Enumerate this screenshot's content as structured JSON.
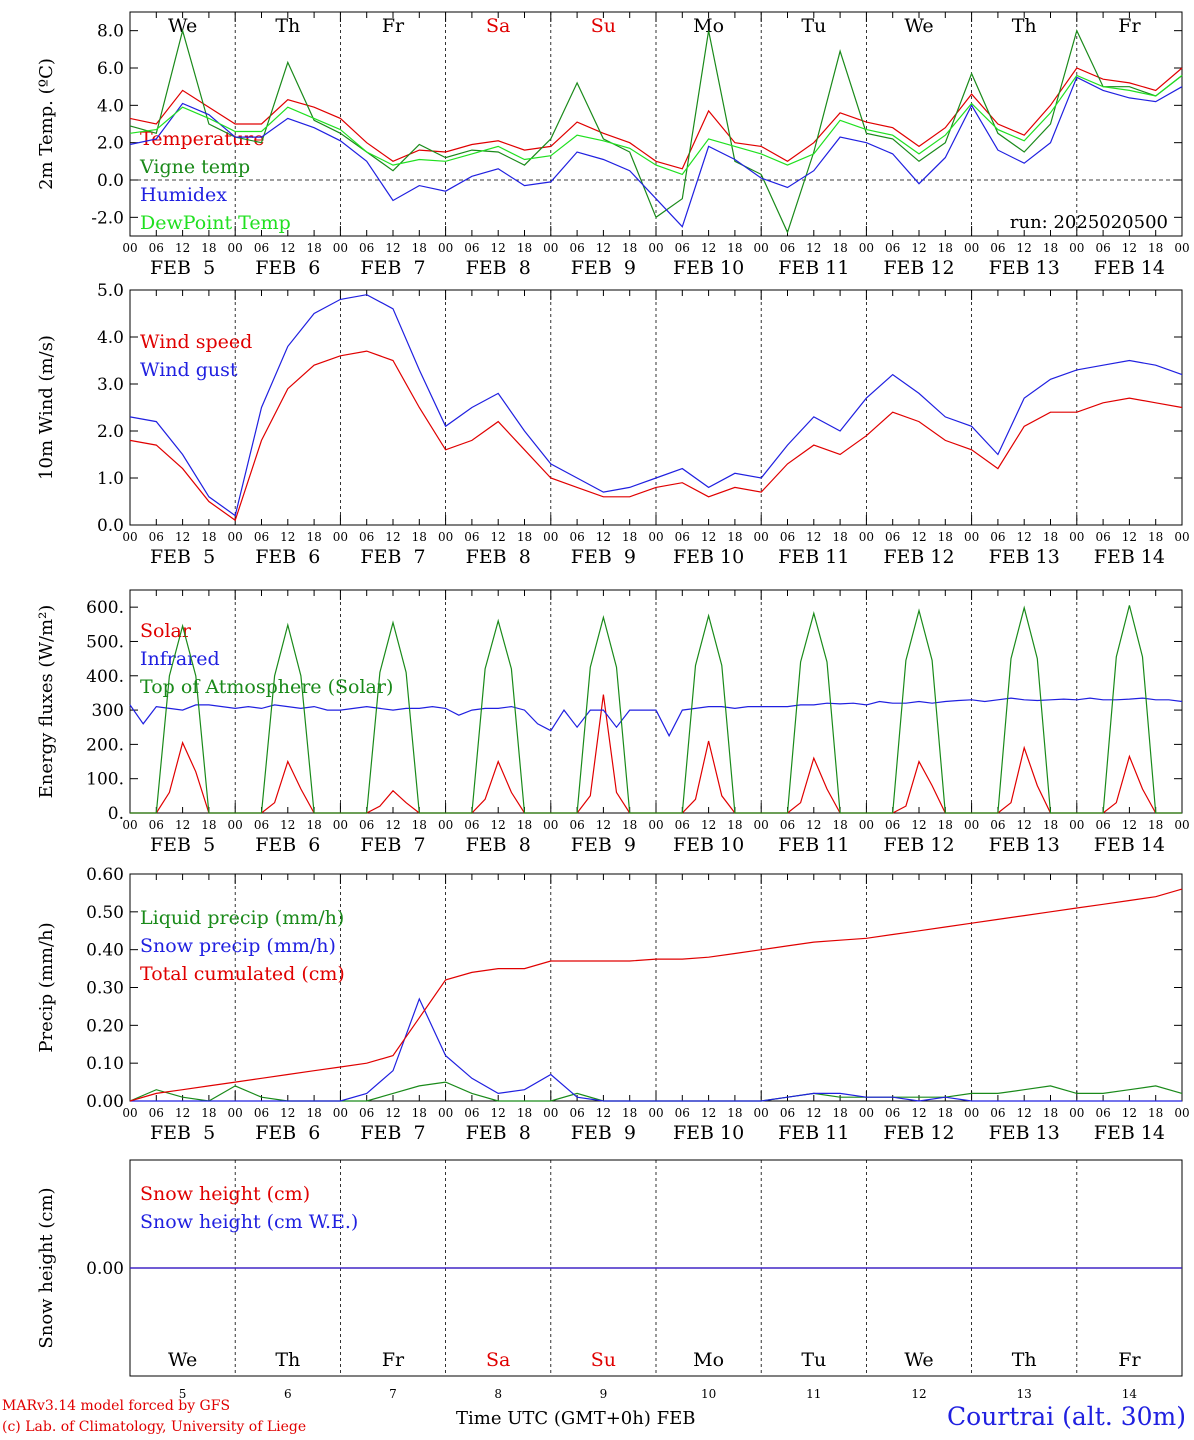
{
  "footer": {
    "model": "MARv3.14 model forced by GFS",
    "lab": "(c) Lab. of Climatology, University of Liege",
    "xaxis_label": "Time UTC (GMT+0h)",
    "month_label": "FEB",
    "station": "Courtrai (alt. 30m)"
  },
  "colors": {
    "red": "#e00000",
    "blue": "#2020e0",
    "green": "#1a8a1a",
    "lightgreen": "#20e020",
    "weekend": "#e00000"
  },
  "chart_data": [
    {
      "type": "line",
      "id": "temp",
      "ylabel": "2m Temp. (ºC)",
      "ylim": [
        -3,
        9
      ],
      "yticks": [
        "8.0",
        "6.0",
        "4.0",
        "2.0",
        "0.0",
        "-2.0"
      ],
      "zero_line": true,
      "day_labels": [
        "We",
        "Th",
        "Fr",
        "Sa",
        "Su",
        "Mo",
        "Tu",
        "We",
        "Th",
        "Fr"
      ],
      "weekend_days": [
        "Sa",
        "Su"
      ],
      "date_labels": [
        "FEB  5",
        "FEB  6",
        "FEB  7",
        "FEB  8",
        "FEB  9",
        "FEB 10",
        "FEB 11",
        "FEB 12",
        "FEB 13",
        "FEB 14"
      ],
      "hour_ticks": [
        "00",
        "06",
        "12",
        "18"
      ],
      "run_label": "run: 2025020500",
      "x_hours": [
        0,
        6,
        12,
        18,
        24,
        30,
        36,
        42,
        48,
        54,
        60,
        66,
        72,
        78,
        84,
        90,
        96,
        102,
        108,
        114,
        120,
        126,
        132,
        138,
        144,
        150,
        156,
        162,
        168,
        174,
        180,
        186,
        192,
        198,
        204,
        210,
        216,
        222,
        228,
        234,
        240
      ],
      "series": [
        {
          "name": "Temperature",
          "color": "#e00000",
          "values": [
            3.3,
            3.0,
            4.8,
            3.9,
            3.0,
            3.0,
            4.3,
            3.9,
            3.3,
            2.0,
            1.0,
            1.6,
            1.5,
            1.9,
            2.1,
            1.6,
            1.8,
            3.1,
            2.5,
            2.0,
            1.0,
            0.6,
            3.7,
            2.0,
            1.8,
            1.0,
            2.0,
            3.6,
            3.1,
            2.8,
            1.8,
            2.8,
            4.6,
            3.0,
            2.4,
            4.0,
            6.0,
            5.4,
            5.2,
            4.8,
            6.0
          ]
        },
        {
          "name": "Vigne temp",
          "color": "#1a8a1a",
          "values": [
            2.9,
            2.5,
            8.0,
            3.0,
            2.3,
            2.0,
            6.3,
            3.2,
            2.5,
            1.5,
            0.5,
            1.9,
            1.2,
            1.6,
            1.5,
            0.8,
            2.2,
            5.2,
            2.2,
            1.5,
            -2.0,
            -1.0,
            8.0,
            1.0,
            0.3,
            -2.8,
            1.5,
            6.9,
            2.5,
            2.2,
            1.0,
            2.0,
            5.7,
            2.5,
            1.5,
            3.0,
            8.0,
            5.0,
            5.0,
            4.5,
            5.6
          ]
        },
        {
          "name": "Humidex",
          "color": "#2020e0",
          "values": [
            1.9,
            2.2,
            4.1,
            3.5,
            2.3,
            2.3,
            3.3,
            2.8,
            2.1,
            1.0,
            -1.1,
            -0.3,
            -0.6,
            0.2,
            0.6,
            -0.3,
            -0.1,
            1.5,
            1.1,
            0.5,
            -1.0,
            -2.5,
            1.8,
            1.1,
            0.1,
            -0.4,
            0.5,
            2.3,
            2.0,
            1.4,
            -0.2,
            1.2,
            4.0,
            1.6,
            0.9,
            2.0,
            5.5,
            4.8,
            4.4,
            4.2,
            5.0
          ]
        },
        {
          "name": "DewPoint Temp",
          "color": "#20e020",
          "values": [
            2.5,
            2.7,
            3.9,
            3.3,
            2.6,
            2.6,
            3.9,
            3.3,
            2.7,
            1.5,
            0.8,
            1.1,
            1.0,
            1.4,
            1.8,
            1.1,
            1.3,
            2.4,
            2.1,
            1.7,
            0.8,
            0.3,
            2.2,
            1.8,
            1.4,
            0.8,
            1.4,
            3.2,
            2.7,
            2.4,
            1.4,
            2.4,
            4.1,
            2.7,
            2.1,
            3.6,
            5.6,
            5.0,
            4.8,
            4.5,
            5.6
          ]
        }
      ]
    },
    {
      "type": "line",
      "id": "wind",
      "ylabel": "10m Wind (m/s)",
      "ylim": [
        0,
        5
      ],
      "yticks": [
        "5.0",
        "4.0",
        "3.0",
        "2.0",
        "1.0",
        "0.0"
      ],
      "date_labels": [
        "FEB  5",
        "FEB  6",
        "FEB  7",
        "FEB  8",
        "FEB  9",
        "FEB 10",
        "FEB 11",
        "FEB 12",
        "FEB 13",
        "FEB 14"
      ],
      "hour_ticks": [
        "00",
        "06",
        "12",
        "18"
      ],
      "x_hours": [
        0,
        6,
        12,
        18,
        24,
        30,
        36,
        42,
        48,
        54,
        60,
        66,
        72,
        78,
        84,
        90,
        96,
        102,
        108,
        114,
        120,
        126,
        132,
        138,
        144,
        150,
        156,
        162,
        168,
        174,
        180,
        186,
        192,
        198,
        204,
        210,
        216,
        222,
        228,
        234,
        240
      ],
      "series": [
        {
          "name": "Wind speed",
          "color": "#e00000",
          "values": [
            1.8,
            1.7,
            1.2,
            0.5,
            0.1,
            1.8,
            2.9,
            3.4,
            3.6,
            3.7,
            3.5,
            2.5,
            1.6,
            1.8,
            2.2,
            1.6,
            1.0,
            0.8,
            0.6,
            0.6,
            0.8,
            0.9,
            0.6,
            0.8,
            0.7,
            1.3,
            1.7,
            1.5,
            1.9,
            2.4,
            2.2,
            1.8,
            1.6,
            1.2,
            2.1,
            2.4,
            2.4,
            2.6,
            2.7,
            2.6,
            2.5
          ]
        },
        {
          "name": "Wind gust",
          "color": "#2020e0",
          "values": [
            2.3,
            2.2,
            1.5,
            0.6,
            0.2,
            2.5,
            3.8,
            4.5,
            4.8,
            4.9,
            4.6,
            3.3,
            2.1,
            2.5,
            2.8,
            2.0,
            1.3,
            1.0,
            0.7,
            0.8,
            1.0,
            1.2,
            0.8,
            1.1,
            1.0,
            1.7,
            2.3,
            2.0,
            2.7,
            3.2,
            2.8,
            2.3,
            2.1,
            1.5,
            2.7,
            3.1,
            3.3,
            3.4,
            3.5,
            3.4,
            3.2
          ]
        }
      ]
    },
    {
      "type": "line",
      "id": "energy",
      "ylabel": "Energy fluxes (W/m²)",
      "ylim": [
        0,
        650
      ],
      "yticks": [
        "600.",
        "500.",
        "400.",
        "300",
        "200.",
        "100.",
        "0."
      ],
      "date_labels": [
        "FEB  5",
        "FEB  6",
        "FEB  7",
        "FEB  8",
        "FEB  9",
        "FEB 10",
        "FEB 11",
        "FEB 12",
        "FEB 13",
        "FEB 14"
      ],
      "hour_ticks": [
        "00",
        "06",
        "12",
        "18"
      ],
      "x_hours": [
        0,
        3,
        6,
        9,
        12,
        15,
        18,
        21,
        24,
        27,
        30,
        33,
        36,
        39,
        42,
        45,
        48,
        51,
        54,
        57,
        60,
        63,
        66,
        69,
        72,
        75,
        78,
        81,
        84,
        87,
        90,
        93,
        96,
        99,
        102,
        105,
        108,
        111,
        114,
        117,
        120,
        123,
        126,
        129,
        132,
        135,
        138,
        141,
        144,
        147,
        150,
        153,
        156,
        159,
        162,
        165,
        168,
        171,
        174,
        177,
        180,
        183,
        186,
        189,
        192,
        195,
        198,
        201,
        204,
        207,
        210,
        213,
        216,
        219,
        222,
        225,
        228,
        231,
        234,
        237,
        240
      ],
      "series": [
        {
          "name": "Solar",
          "color": "#e00000",
          "values": [
            0,
            0,
            0,
            60,
            205,
            120,
            0,
            0,
            0,
            0,
            0,
            30,
            150,
            70,
            0,
            0,
            0,
            0,
            0,
            20,
            65,
            30,
            0,
            0,
            0,
            0,
            0,
            40,
            150,
            60,
            0,
            0,
            0,
            0,
            0,
            50,
            345,
            60,
            0,
            0,
            0,
            0,
            0,
            40,
            210,
            50,
            0,
            0,
            0,
            0,
            0,
            30,
            160,
            70,
            0,
            0,
            0,
            0,
            0,
            20,
            150,
            80,
            0,
            0,
            0,
            0,
            0,
            30,
            190,
            80,
            0,
            0,
            0,
            0,
            0,
            30,
            165,
            70,
            0,
            0,
            0
          ]
        },
        {
          "name": "Infrared",
          "color": "#2020e0",
          "values": [
            315,
            260,
            310,
            305,
            300,
            315,
            315,
            310,
            305,
            310,
            305,
            315,
            310,
            305,
            310,
            300,
            300,
            305,
            310,
            305,
            300,
            305,
            305,
            310,
            305,
            285,
            300,
            305,
            305,
            310,
            300,
            260,
            240,
            300,
            250,
            300,
            300,
            250,
            300,
            300,
            300,
            225,
            300,
            305,
            310,
            310,
            305,
            310,
            310,
            310,
            310,
            315,
            315,
            320,
            318,
            320,
            315,
            325,
            320,
            320,
            325,
            320,
            325,
            328,
            330,
            325,
            330,
            335,
            330,
            328,
            330,
            332,
            330,
            335,
            330,
            330,
            332,
            335,
            330,
            330,
            325
          ]
        },
        {
          "name": "Top of Atmosphere (Solar)",
          "color": "#1a8a1a",
          "values": [
            0,
            0,
            0,
            400,
            545,
            400,
            0,
            0,
            0,
            0,
            0,
            400,
            548,
            400,
            0,
            0,
            0,
            0,
            0,
            410,
            555,
            410,
            0,
            0,
            0,
            0,
            0,
            420,
            560,
            420,
            0,
            0,
            0,
            0,
            0,
            425,
            570,
            425,
            0,
            0,
            0,
            0,
            0,
            430,
            575,
            430,
            0,
            0,
            0,
            0,
            0,
            440,
            582,
            440,
            0,
            0,
            0,
            0,
            0,
            445,
            590,
            445,
            0,
            0,
            0,
            0,
            0,
            450,
            598,
            450,
            0,
            0,
            0,
            0,
            0,
            455,
            605,
            455,
            0,
            0,
            0
          ]
        }
      ]
    },
    {
      "type": "line",
      "id": "precip",
      "ylabel": "Precip (mm/h)",
      "ylim": [
        0,
        0.6
      ],
      "yticks": [
        "0.60",
        "0.50",
        "0.40",
        "0.30",
        "0.20",
        "0.10",
        "0.00"
      ],
      "date_labels": [
        "FEB  5",
        "FEB  6",
        "FEB  7",
        "FEB  8",
        "FEB  9",
        "FEB 10",
        "FEB 11",
        "FEB 12",
        "FEB 13",
        "FEB 14"
      ],
      "hour_ticks": [
        "00",
        "06",
        "12",
        "18"
      ],
      "x_hours": [
        0,
        6,
        12,
        18,
        24,
        30,
        36,
        42,
        48,
        54,
        60,
        66,
        72,
        78,
        84,
        90,
        96,
        102,
        108,
        114,
        120,
        126,
        132,
        138,
        144,
        150,
        156,
        162,
        168,
        174,
        180,
        186,
        192,
        198,
        204,
        210,
        216,
        222,
        228,
        234,
        240
      ],
      "series": [
        {
          "name": "Liquid precip (mm/h)",
          "color": "#1a8a1a",
          "values": [
            0,
            0.03,
            0.01,
            0,
            0.04,
            0.01,
            0,
            0,
            0,
            0,
            0.02,
            0.04,
            0.05,
            0.02,
            0,
            0,
            0,
            0.02,
            0,
            0,
            0,
            0,
            0,
            0,
            0,
            0.01,
            0.02,
            0.01,
            0.01,
            0.01,
            0.01,
            0.01,
            0.02,
            0.02,
            0.03,
            0.04,
            0.02,
            0.02,
            0.03,
            0.04,
            0.02
          ]
        },
        {
          "name": "Snow precip (mm/h)",
          "color": "#2020e0",
          "values": [
            0,
            0,
            0,
            0,
            0,
            0,
            0,
            0,
            0,
            0.02,
            0.08,
            0.27,
            0.12,
            0.06,
            0.02,
            0.03,
            0.07,
            0.01,
            0,
            0,
            0,
            0,
            0,
            0,
            0,
            0.01,
            0.02,
            0.02,
            0.01,
            0.01,
            0,
            0.01,
            0,
            0,
            0,
            0,
            0,
            0,
            0,
            0,
            0
          ]
        },
        {
          "name": "Total cumulated (cm)",
          "color": "#e00000",
          "values": [
            0,
            0.02,
            0.03,
            0.04,
            0.05,
            0.06,
            0.07,
            0.08,
            0.09,
            0.1,
            0.12,
            0.22,
            0.32,
            0.34,
            0.35,
            0.35,
            0.37,
            0.37,
            0.37,
            0.37,
            0.375,
            0.375,
            0.38,
            0.39,
            0.4,
            0.41,
            0.42,
            0.425,
            0.43,
            0.44,
            0.45,
            0.46,
            0.47,
            0.48,
            0.49,
            0.5,
            0.51,
            0.52,
            0.53,
            0.54,
            0.56
          ]
        }
      ]
    },
    {
      "type": "line",
      "id": "snow",
      "ylabel": "Snow height (cm)",
      "ylim": [
        -1,
        1
      ],
      "yticks": [
        "0.00"
      ],
      "day_labels": [
        "We",
        "Th",
        "Fr",
        "Sa",
        "Su",
        "Mo",
        "Tu",
        "We",
        "Th",
        "Fr"
      ],
      "weekend_days": [
        "Sa",
        "Su"
      ],
      "day_numbers": [
        "5",
        "6",
        "7",
        "8",
        "9",
        "10",
        "11",
        "12",
        "13",
        "14"
      ],
      "x_hours": [
        0,
        240
      ],
      "series": [
        {
          "name": "Snow height (cm)",
          "color": "#e00000",
          "values": [
            0,
            0
          ]
        },
        {
          "name": "Snow height (cm W.E.)",
          "color": "#2020e0",
          "values": [
            0,
            0
          ]
        }
      ]
    }
  ]
}
